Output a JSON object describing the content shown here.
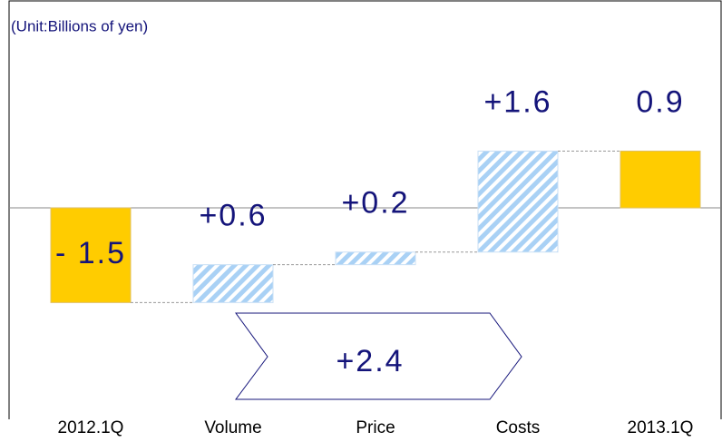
{
  "chart_data": {
    "type": "waterfall",
    "title": "(Unit:Billions of yen)",
    "categories": [
      "2012.1Q",
      "Volume",
      "Price",
      "Costs",
      "2013.1Q"
    ],
    "values": [
      -1.5,
      0.6,
      0.2,
      1.6,
      0.9
    ],
    "value_labels": [
      "- 1.5",
      "+0.6",
      "+0.2",
      "+1.6",
      "0.9"
    ],
    "measure": [
      "absolute",
      "relative",
      "relative",
      "relative",
      "total"
    ],
    "total_color": "#ffcc00",
    "change_color": "#a9d1f5",
    "annotation": "+2.4",
    "ylim": [
      -3.35,
      3.28
    ]
  }
}
